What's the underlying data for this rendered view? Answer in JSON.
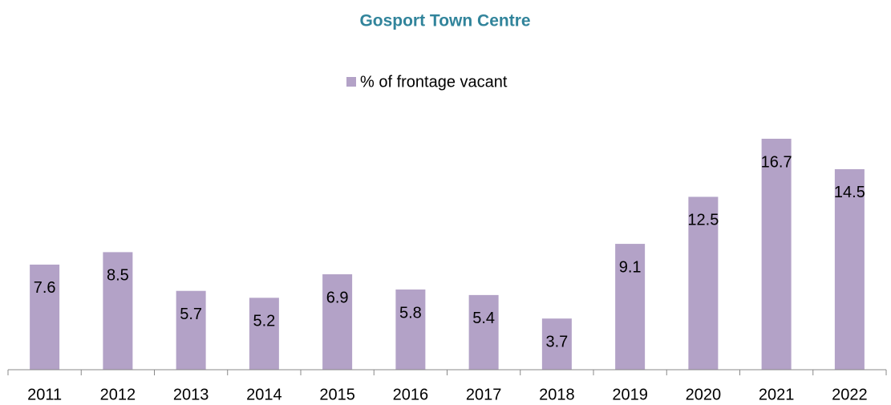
{
  "chart_data": {
    "type": "bar",
    "title": "Gosport Town Centre",
    "categories": [
      "2011",
      "2012",
      "2013",
      "2014",
      "2015",
      "2016",
      "2017",
      "2018",
      "2019",
      "2020",
      "2021",
      "2022"
    ],
    "series": [
      {
        "name": "% of frontage vacant",
        "color": "#b3a2c7",
        "values": [
          7.6,
          8.5,
          5.7,
          5.2,
          6.9,
          5.8,
          5.4,
          3.7,
          9.1,
          12.5,
          16.7,
          14.5
        ]
      }
    ],
    "legend": "top"
  }
}
